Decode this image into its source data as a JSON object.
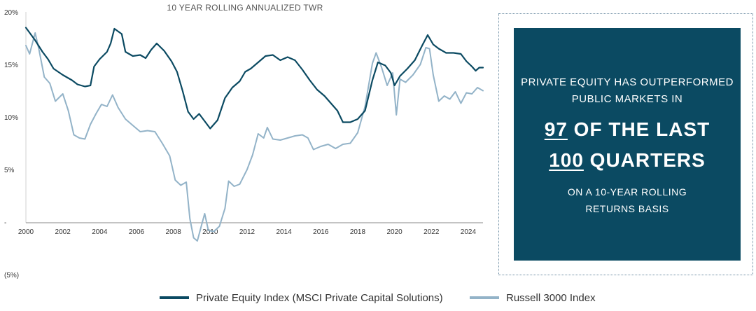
{
  "chart_data": {
    "type": "line",
    "title": "10 YEAR ROLLING ANNUALIZED TWR",
    "xlabel": "",
    "ylabel": "",
    "xlim": [
      2000,
      2024.8
    ],
    "ylim": [
      -5,
      20
    ],
    "x_ticks": [
      "2000",
      "2002",
      "2004",
      "2006",
      "2008",
      "2010",
      "2012",
      "2014",
      "2016",
      "2018",
      "2020",
      "2022",
      "2024"
    ],
    "y_ticks": [
      {
        "value": 20,
        "label": "20%"
      },
      {
        "value": 15,
        "label": "15%"
      },
      {
        "value": 10,
        "label": "10%"
      },
      {
        "value": 5,
        "label": "5%"
      },
      {
        "value": 0,
        "label": "-"
      },
      {
        "value": -5,
        "label": "(5%)"
      }
    ],
    "legend_position": "bottom",
    "series": [
      {
        "name": "Private Equity Index (MSCI Private Capital Solutions)",
        "color": "#0b4a62",
        "points": [
          [
            2000,
            18.5
          ],
          [
            2000.5,
            17.3
          ],
          [
            2000.9,
            16.2
          ],
          [
            2001.2,
            15.5
          ],
          [
            2001.5,
            14.6
          ],
          [
            2002,
            14.0
          ],
          [
            2002.5,
            13.5
          ],
          [
            2002.8,
            13.1
          ],
          [
            2003.2,
            12.9
          ],
          [
            2003.5,
            13.0
          ],
          [
            2003.7,
            14.8
          ],
          [
            2004,
            15.5
          ],
          [
            2004.4,
            16.2
          ],
          [
            2004.6,
            17.0
          ],
          [
            2004.8,
            18.4
          ],
          [
            2005.2,
            17.9
          ],
          [
            2005.4,
            16.2
          ],
          [
            2005.8,
            15.8
          ],
          [
            2006.2,
            15.9
          ],
          [
            2006.5,
            15.6
          ],
          [
            2006.8,
            16.4
          ],
          [
            2007.1,
            17.0
          ],
          [
            2007.5,
            16.3
          ],
          [
            2007.9,
            15.3
          ],
          [
            2008.2,
            14.3
          ],
          [
            2008.5,
            12.5
          ],
          [
            2008.8,
            10.5
          ],
          [
            2009.1,
            9.8
          ],
          [
            2009.4,
            10.3
          ],
          [
            2009.7,
            9.6
          ],
          [
            2010,
            8.9
          ],
          [
            2010.4,
            9.7
          ],
          [
            2010.8,
            11.8
          ],
          [
            2011.2,
            12.8
          ],
          [
            2011.6,
            13.4
          ],
          [
            2011.9,
            14.3
          ],
          [
            2012.2,
            14.6
          ],
          [
            2012.6,
            15.2
          ],
          [
            2013,
            15.8
          ],
          [
            2013.4,
            15.9
          ],
          [
            2013.8,
            15.4
          ],
          [
            2014.2,
            15.7
          ],
          [
            2014.6,
            15.4
          ],
          [
            2015,
            14.5
          ],
          [
            2015.4,
            13.5
          ],
          [
            2015.8,
            12.6
          ],
          [
            2016.2,
            12.0
          ],
          [
            2016.6,
            11.2
          ],
          [
            2016.9,
            10.6
          ],
          [
            2017.2,
            9.5
          ],
          [
            2017.6,
            9.5
          ],
          [
            2018,
            9.8
          ],
          [
            2018.4,
            10.6
          ],
          [
            2018.8,
            13.5
          ],
          [
            2019.1,
            15.2
          ],
          [
            2019.5,
            14.9
          ],
          [
            2019.8,
            14.2
          ],
          [
            2020,
            13.0
          ],
          [
            2020.3,
            13.9
          ],
          [
            2020.7,
            14.6
          ],
          [
            2021.1,
            15.4
          ],
          [
            2021.5,
            16.8
          ],
          [
            2021.8,
            17.8
          ],
          [
            2022.1,
            16.9
          ],
          [
            2022.4,
            16.5
          ],
          [
            2022.8,
            16.1
          ],
          [
            2023.2,
            16.1
          ],
          [
            2023.6,
            16.0
          ],
          [
            2023.9,
            15.3
          ],
          [
            2024.2,
            14.8
          ],
          [
            2024.4,
            14.4
          ],
          [
            2024.6,
            14.7
          ],
          [
            2024.8,
            14.7
          ]
        ]
      },
      {
        "name": "Russell 3000 Index",
        "color": "#93b3c8",
        "points": [
          [
            2000,
            16.8
          ],
          [
            2000.2,
            16.0
          ],
          [
            2000.5,
            18.0
          ],
          [
            2000.7,
            16.5
          ],
          [
            2001,
            13.8
          ],
          [
            2001.3,
            13.2
          ],
          [
            2001.6,
            11.5
          ],
          [
            2002,
            12.2
          ],
          [
            2002.3,
            10.6
          ],
          [
            2002.6,
            8.3
          ],
          [
            2002.9,
            8.0
          ],
          [
            2003.2,
            7.9
          ],
          [
            2003.5,
            9.3
          ],
          [
            2003.8,
            10.3
          ],
          [
            2004.1,
            11.2
          ],
          [
            2004.4,
            11.0
          ],
          [
            2004.7,
            12.1
          ],
          [
            2005,
            10.9
          ],
          [
            2005.4,
            9.8
          ],
          [
            2005.8,
            9.2
          ],
          [
            2006.2,
            8.6
          ],
          [
            2006.6,
            8.7
          ],
          [
            2007,
            8.6
          ],
          [
            2007.4,
            7.5
          ],
          [
            2007.8,
            6.3
          ],
          [
            2008.1,
            4.0
          ],
          [
            2008.4,
            3.5
          ],
          [
            2008.7,
            3.8
          ],
          [
            2008.9,
            0.3
          ],
          [
            2009.1,
            -1.5
          ],
          [
            2009.3,
            -1.8
          ],
          [
            2009.5,
            -0.5
          ],
          [
            2009.7,
            0.8
          ],
          [
            2009.9,
            -0.8
          ],
          [
            2010.2,
            -0.9
          ],
          [
            2010.5,
            -0.4
          ],
          [
            2010.8,
            1.3
          ],
          [
            2011,
            3.9
          ],
          [
            2011.3,
            3.4
          ],
          [
            2011.6,
            3.6
          ],
          [
            2012,
            5.0
          ],
          [
            2012.3,
            6.4
          ],
          [
            2012.6,
            8.4
          ],
          [
            2012.9,
            8.0
          ],
          [
            2013.1,
            9.0
          ],
          [
            2013.4,
            7.9
          ],
          [
            2013.8,
            7.8
          ],
          [
            2014.2,
            8.0
          ],
          [
            2014.6,
            8.2
          ],
          [
            2015,
            8.3
          ],
          [
            2015.3,
            8.0
          ],
          [
            2015.6,
            6.9
          ],
          [
            2016,
            7.2
          ],
          [
            2016.4,
            7.4
          ],
          [
            2016.8,
            7.0
          ],
          [
            2017.2,
            7.4
          ],
          [
            2017.6,
            7.5
          ],
          [
            2018,
            8.5
          ],
          [
            2018.4,
            11.0
          ],
          [
            2018.8,
            15.1
          ],
          [
            2019,
            16.1
          ],
          [
            2019.3,
            14.7
          ],
          [
            2019.6,
            13.0
          ],
          [
            2019.9,
            14.2
          ],
          [
            2020.1,
            10.2
          ],
          [
            2020.3,
            13.6
          ],
          [
            2020.6,
            13.3
          ],
          [
            2021,
            14.0
          ],
          [
            2021.4,
            15.0
          ],
          [
            2021.7,
            16.6
          ],
          [
            2021.9,
            16.5
          ],
          [
            2022.1,
            14.0
          ],
          [
            2022.4,
            11.5
          ],
          [
            2022.7,
            12.0
          ],
          [
            2023,
            11.7
          ],
          [
            2023.3,
            12.4
          ],
          [
            2023.6,
            11.3
          ],
          [
            2023.9,
            12.3
          ],
          [
            2024.2,
            12.2
          ],
          [
            2024.5,
            12.8
          ],
          [
            2024.8,
            12.5
          ]
        ]
      }
    ]
  },
  "panel": {
    "line1": "PRIVATE EQUITY HAS OUTPERFORMED",
    "line2": "PUBLIC MARKETS IN",
    "big1_num": "97",
    "big1_rest": " OF THE LAST",
    "big2_num": "100",
    "big2_rest": " QUARTERS",
    "bottom1": "ON A 10-YEAR ROLLING",
    "bottom2": "RETURNS BASIS"
  }
}
